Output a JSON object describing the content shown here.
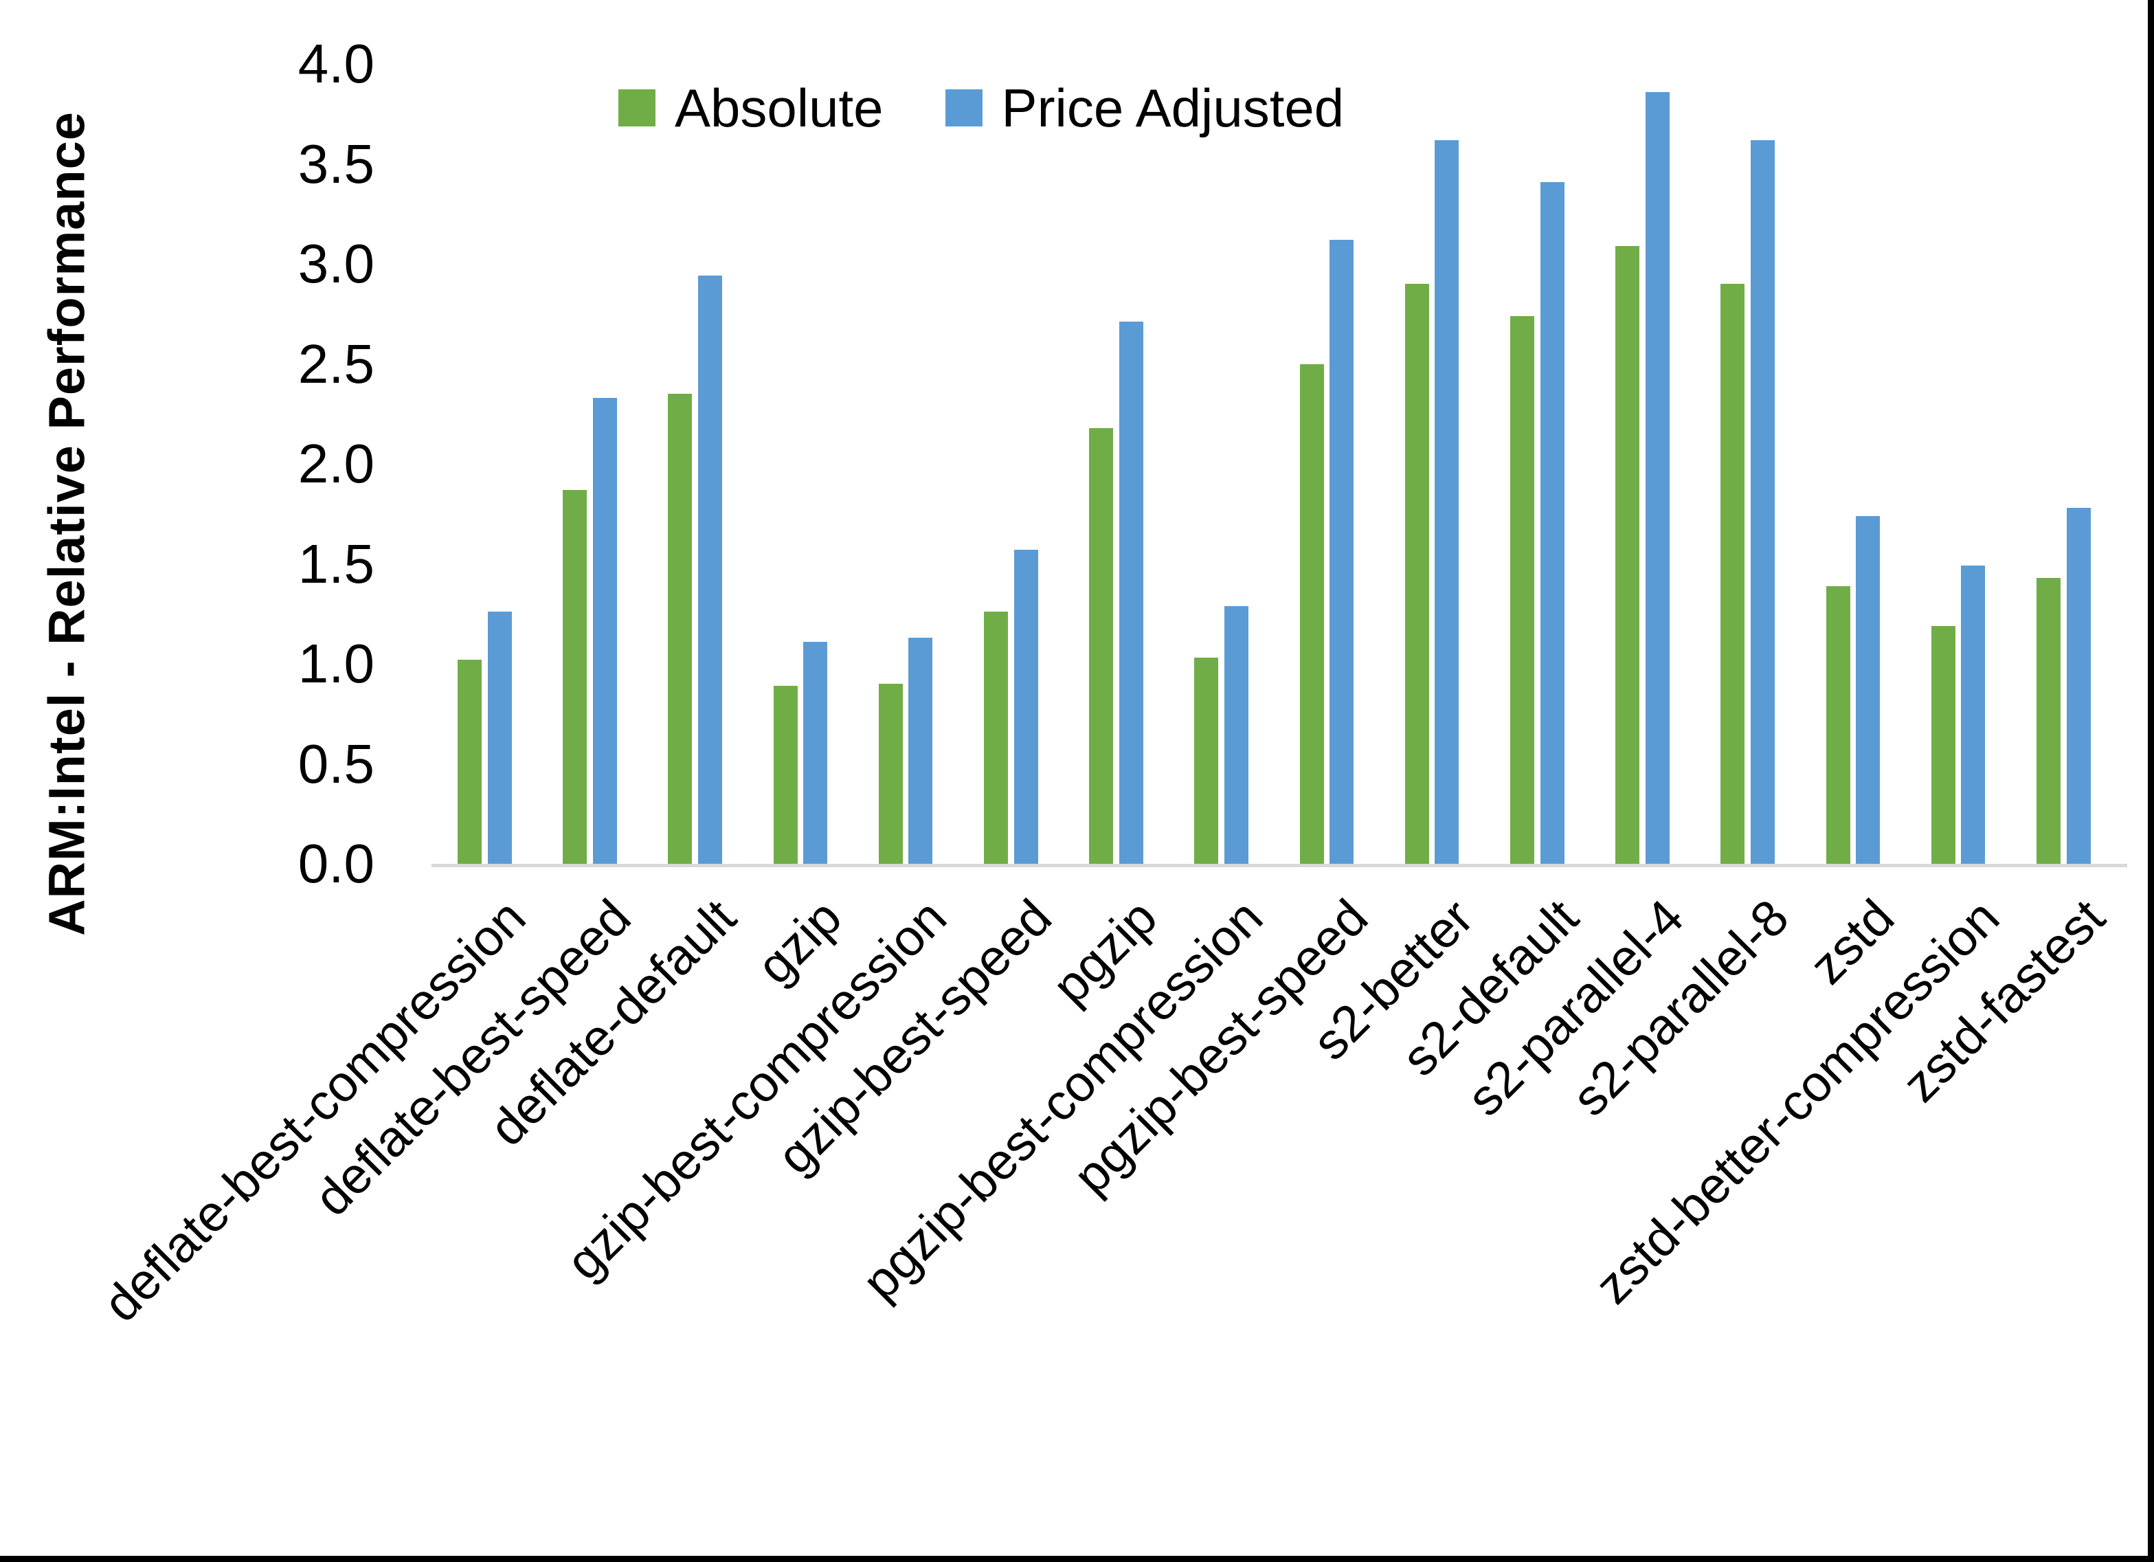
{
  "chart_data": {
    "type": "bar",
    "title": "",
    "xlabel": "",
    "ylabel": "ARM:Intel - Relative Performance",
    "ylim": [
      0.0,
      4.0
    ],
    "ytick_step": 0.5,
    "yticks": [
      "4.0",
      "3.5",
      "3.0",
      "2.5",
      "2.0",
      "1.5",
      "1.0",
      "0.5",
      "0.0"
    ],
    "grid": false,
    "legend_position": "top-center",
    "axis_line_color": "#d9d9d9",
    "text_color": "#000000",
    "background_color": "#ffffff",
    "categories": [
      "deflate-best-compression",
      "deflate-best-speed",
      "deflate-default",
      "gzip",
      "gzip-best-compression",
      "gzip-best-speed",
      "pgzip",
      "pgzip-best-compression",
      "pgzip-best-speed",
      "s2-better",
      "s2-default",
      "s2-parallel-4",
      "s2-parallel-8",
      "zstd",
      "zstd-better-compression",
      "zstd-fastest"
    ],
    "series": [
      {
        "name": "Absolute",
        "color": "#70ad47",
        "values": [
          1.02,
          1.87,
          2.35,
          0.89,
          0.9,
          1.26,
          2.18,
          1.03,
          2.5,
          2.9,
          2.74,
          3.09,
          2.9,
          1.39,
          1.19,
          1.43
        ]
      },
      {
        "name": "Price Adjusted",
        "color": "#5b9bd5",
        "values": [
          1.26,
          2.33,
          2.94,
          1.11,
          1.13,
          1.57,
          2.71,
          1.29,
          3.12,
          3.62,
          3.41,
          3.86,
          3.62,
          1.74,
          1.49,
          1.78
        ]
      }
    ]
  }
}
